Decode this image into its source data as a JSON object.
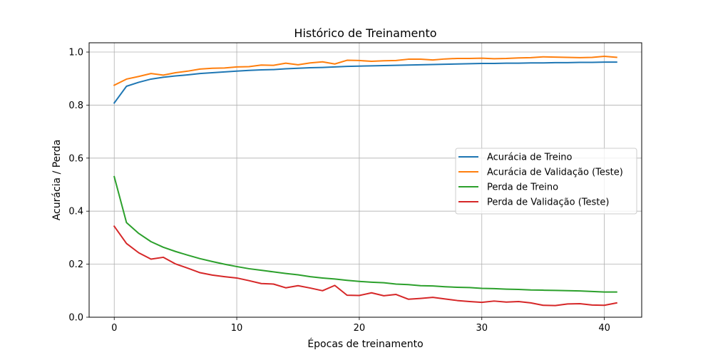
{
  "chart_data": {
    "type": "line",
    "title": "Histórico de Treinamento",
    "xlabel": "Épocas de treinamento",
    "ylabel": "Acurácia / Perda",
    "xlim": [
      -2.05,
      43.05
    ],
    "ylim": [
      0.0,
      1.035
    ],
    "x_ticks": [
      0,
      10,
      20,
      30,
      40
    ],
    "y_ticks": [
      0.0,
      0.2,
      0.4,
      0.6,
      0.8,
      1.0
    ],
    "x_tick_labels": [
      "0",
      "10",
      "20",
      "30",
      "40"
    ],
    "y_tick_labels": [
      "0.0",
      "0.2",
      "0.4",
      "0.6",
      "0.8",
      "1.0"
    ],
    "grid": true,
    "legend_position": "center-right",
    "x": [
      0,
      1,
      2,
      3,
      4,
      5,
      6,
      7,
      8,
      9,
      10,
      11,
      12,
      13,
      14,
      15,
      16,
      17,
      18,
      19,
      20,
      21,
      22,
      23,
      24,
      25,
      26,
      27,
      28,
      29,
      30,
      31,
      32,
      33,
      34,
      35,
      36,
      37,
      38,
      39,
      40,
      41
    ],
    "series": [
      {
        "name": "Acurácia de Treino",
        "color": "#1f77b4",
        "values": [
          0.808,
          0.871,
          0.886,
          0.898,
          0.905,
          0.91,
          0.914,
          0.919,
          0.922,
          0.925,
          0.928,
          0.931,
          0.933,
          0.934,
          0.937,
          0.939,
          0.941,
          0.942,
          0.944,
          0.946,
          0.947,
          0.948,
          0.949,
          0.95,
          0.951,
          0.952,
          0.953,
          0.954,
          0.955,
          0.956,
          0.957,
          0.957,
          0.958,
          0.958,
          0.959,
          0.959,
          0.96,
          0.96,
          0.961,
          0.961,
          0.962,
          0.962
        ]
      },
      {
        "name": "Acurácia de Validação (Teste)",
        "color": "#ff7f0e",
        "values": [
          0.875,
          0.898,
          0.908,
          0.919,
          0.913,
          0.922,
          0.928,
          0.936,
          0.939,
          0.94,
          0.944,
          0.945,
          0.951,
          0.95,
          0.958,
          0.952,
          0.959,
          0.963,
          0.955,
          0.969,
          0.968,
          0.965,
          0.967,
          0.968,
          0.973,
          0.973,
          0.97,
          0.974,
          0.976,
          0.976,
          0.977,
          0.975,
          0.976,
          0.978,
          0.979,
          0.982,
          0.981,
          0.98,
          0.979,
          0.98,
          0.984,
          0.98
        ]
      },
      {
        "name": "Perda de Treino",
        "color": "#2ca02c",
        "values": [
          0.53,
          0.357,
          0.316,
          0.285,
          0.264,
          0.248,
          0.234,
          0.221,
          0.21,
          0.2,
          0.191,
          0.183,
          0.177,
          0.171,
          0.165,
          0.16,
          0.153,
          0.148,
          0.144,
          0.139,
          0.135,
          0.132,
          0.13,
          0.125,
          0.123,
          0.119,
          0.118,
          0.115,
          0.113,
          0.112,
          0.109,
          0.108,
          0.106,
          0.105,
          0.103,
          0.102,
          0.101,
          0.1,
          0.099,
          0.097,
          0.095,
          0.095
        ]
      },
      {
        "name": "Perda de Validação (Teste)",
        "color": "#d62728",
        "values": [
          0.343,
          0.278,
          0.243,
          0.219,
          0.226,
          0.201,
          0.185,
          0.168,
          0.159,
          0.153,
          0.148,
          0.138,
          0.127,
          0.125,
          0.111,
          0.119,
          0.11,
          0.1,
          0.12,
          0.083,
          0.082,
          0.092,
          0.081,
          0.086,
          0.068,
          0.071,
          0.075,
          0.069,
          0.063,
          0.059,
          0.056,
          0.061,
          0.057,
          0.059,
          0.054,
          0.045,
          0.044,
          0.05,
          0.051,
          0.046,
          0.045,
          0.054
        ]
      }
    ]
  }
}
